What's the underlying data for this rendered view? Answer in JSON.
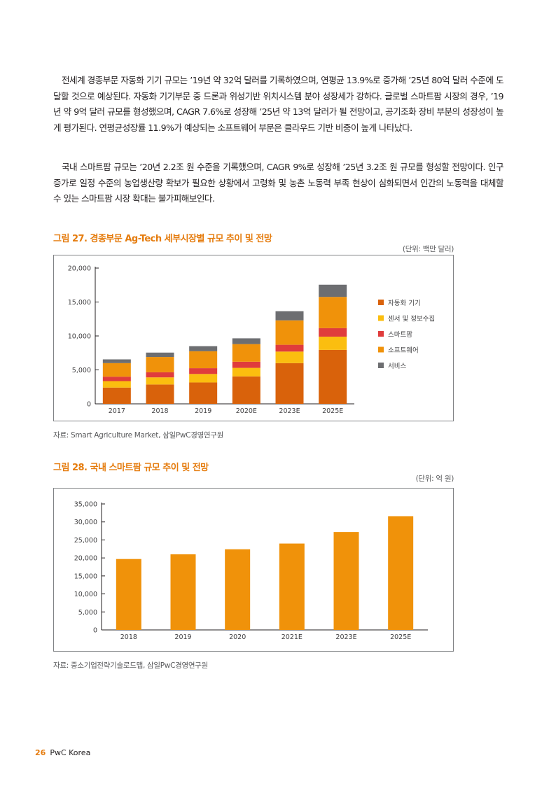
{
  "paragraphs": [
    "전세계 경종부문 자동화 기기 규모는 ’19년 약 32억 달러를 기록하였으며, 연평균 13.9%로 증가해 ’25년 80억 달러 수준에 도달할 것으로 예상된다. 자동화 기기부문 중 드론과 위성기반 위치시스템 분야 성장세가 강하다. 글로벌 스마트팜 시장의 경우, ’19년 약 9억 달러 규모를 형성했으며, CAGR 7.6%로 성장해 ’25년 약 13억 달러가 될 전망이고, 공기조화 장비 부분의 성장성이 높게 평가된다. 연평균성장률 11.9%가 예상되는 소프트웨어 부문은 클라우드 기반 비중이 높게 나타났다.",
    "국내 스마트팜 규모는 ’20년 2.2조 원 수준을 기록했으며, CAGR 9%로 성장해 ’25년 3.2조 원 규모를 형성할 전망이다. 인구증가로 일정 수준의 농업생산량 확보가 필요한 상황에서 고령화 및 농촌 노동력 부족 현상이 심화되면서 인간의 노동력을 대체할 수 있는 스마트팜 시장 확대는 불가피해보인다."
  ],
  "figure1": {
    "title": "그림 27. 경종부문 Ag-Tech 세부시장별 규모 추이 및 전망",
    "unit": "(단위: 백만 달러)",
    "source": "자료: Smart Agriculture Market, 삼일PwC경영연구원"
  },
  "figure2": {
    "title": "그림 28. 국내 스마트팜 규모 추이 및 전망",
    "unit": "(단위: 억 원)",
    "source": "자료: 중소기업전략기술로드맵, 삼일PwC경영연구원"
  },
  "footer": {
    "page": "26",
    "brand": "PwC Korea"
  },
  "chart_data": [
    {
      "type": "bar",
      "stacked": true,
      "categories": [
        "2017",
        "2018",
        "2019",
        "2020E",
        "2023E",
        "2025E"
      ],
      "ylim": [
        0,
        20000
      ],
      "yticks": [
        "0",
        "5,000",
        "10,000",
        "15,000",
        "20,000"
      ],
      "grid": false,
      "legend_position": "right",
      "series": [
        {
          "name": "자동화 기기",
          "color": "#d9620b",
          "values": [
            2400,
            2850,
            3150,
            4050,
            6000,
            7950
          ]
        },
        {
          "name": "센서 및 정보수집",
          "color": "#fbbe0f",
          "values": [
            950,
            1050,
            1250,
            1250,
            1700,
            1950
          ]
        },
        {
          "name": "스마트팜",
          "color": "#e03c3c",
          "values": [
            650,
            750,
            850,
            900,
            1000,
            1250
          ]
        },
        {
          "name": "소프트웨어",
          "color": "#f0920a",
          "values": [
            2000,
            2250,
            2500,
            2600,
            3600,
            4600
          ]
        },
        {
          "name": "서비스",
          "color": "#6d6e71",
          "values": [
            550,
            650,
            750,
            850,
            1350,
            1800
          ]
        }
      ]
    },
    {
      "type": "bar",
      "categories": [
        "2018",
        "2019",
        "2020",
        "2021E",
        "2023E",
        "2025E"
      ],
      "ylim": [
        0,
        35000
      ],
      "yticks": [
        "0",
        "5,000",
        "10,000",
        "15,000",
        "20,000",
        "25,000",
        "30,000",
        "35,000"
      ],
      "grid": false,
      "series": [
        {
          "color": "#f0920a",
          "values": [
            19700,
            21000,
            22400,
            24000,
            27200,
            31600
          ]
        }
      ]
    }
  ]
}
